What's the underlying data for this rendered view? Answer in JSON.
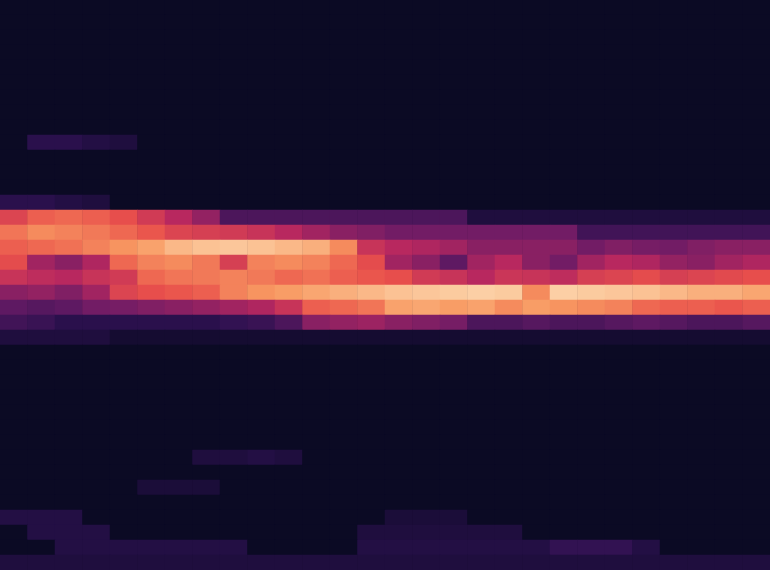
{
  "chart_data": {
    "type": "heatmap",
    "tick_labels": false,
    "grid": false,
    "zlim": [
      0,
      100
    ],
    "z": [
      [
        0,
        0,
        0,
        0,
        0,
        0,
        0,
        0,
        0,
        0,
        0,
        0,
        0,
        0,
        0,
        0,
        0,
        0,
        0,
        0,
        0,
        0,
        0,
        0,
        0,
        0,
        0,
        0
      ],
      [
        0,
        0,
        0,
        0,
        0,
        0,
        0,
        0,
        0,
        0,
        0,
        0,
        0,
        0,
        0,
        0,
        0,
        0,
        0,
        0,
        0,
        0,
        0,
        0,
        0,
        0,
        0,
        0
      ],
      [
        0,
        0,
        0,
        0,
        0,
        0,
        0,
        0,
        0,
        0,
        0,
        0,
        0,
        0,
        0,
        0,
        0,
        0,
        0,
        0,
        0,
        0,
        0,
        0,
        0,
        0,
        0,
        0
      ],
      [
        0,
        0,
        0,
        0,
        0,
        0,
        0,
        0,
        0,
        0,
        0,
        0,
        0,
        0,
        0,
        0,
        0,
        0,
        0,
        0,
        0,
        0,
        0,
        0,
        0,
        0,
        0,
        0
      ],
      [
        0,
        0,
        0,
        0,
        0,
        0,
        0,
        0,
        0,
        0,
        0,
        0,
        0,
        0,
        0,
        0,
        0,
        0,
        0,
        0,
        0,
        0,
        0,
        0,
        0,
        0,
        0,
        0
      ],
      [
        0,
        0,
        0,
        0,
        0,
        0,
        0,
        0,
        0,
        0,
        0,
        0,
        0,
        0,
        0,
        0,
        0,
        0,
        0,
        0,
        0,
        0,
        0,
        0,
        0,
        0,
        0,
        0
      ],
      [
        0,
        0,
        0,
        0,
        0,
        0,
        0,
        0,
        0,
        0,
        0,
        0,
        0,
        0,
        0,
        0,
        0,
        0,
        0,
        0,
        0,
        0,
        0,
        0,
        0,
        0,
        0,
        0
      ],
      [
        0,
        0,
        0,
        0,
        0,
        0,
        0,
        0,
        0,
        0,
        0,
        0,
        0,
        0,
        0,
        0,
        0,
        0,
        0,
        0,
        0,
        0,
        0,
        0,
        0,
        0,
        0,
        0
      ],
      [
        0,
        0,
        0,
        0,
        0,
        0,
        0,
        0,
        0,
        0,
        0,
        0,
        0,
        0,
        0,
        0,
        0,
        0,
        0,
        0,
        0,
        0,
        0,
        0,
        0,
        0,
        0,
        0
      ],
      [
        0,
        15,
        15,
        12,
        10,
        0,
        0,
        0,
        0,
        0,
        0,
        0,
        0,
        0,
        0,
        0,
        0,
        0,
        0,
        0,
        0,
        0,
        0,
        0,
        0,
        0,
        0,
        0
      ],
      [
        0,
        0,
        0,
        0,
        0,
        0,
        0,
        0,
        0,
        0,
        0,
        0,
        0,
        0,
        0,
        0,
        0,
        0,
        0,
        0,
        0,
        0,
        0,
        0,
        0,
        0,
        0,
        0
      ],
      [
        0,
        0,
        0,
        0,
        0,
        0,
        0,
        0,
        0,
        0,
        0,
        0,
        0,
        0,
        0,
        0,
        0,
        0,
        0,
        0,
        0,
        0,
        0,
        0,
        0,
        0,
        0,
        0
      ],
      [
        0,
        0,
        0,
        0,
        0,
        0,
        0,
        0,
        0,
        0,
        0,
        0,
        0,
        0,
        0,
        0,
        0,
        0,
        0,
        0,
        0,
        0,
        0,
        0,
        0,
        0,
        0,
        0
      ],
      [
        15,
        15,
        12,
        10,
        0,
        0,
        0,
        0,
        0,
        0,
        0,
        0,
        0,
        0,
        0,
        0,
        0,
        0,
        0,
        0,
        0,
        0,
        0,
        0,
        0,
        0,
        0,
        0
      ],
      [
        62,
        70,
        72,
        70,
        66,
        58,
        50,
        42,
        25,
        25,
        25,
        25,
        25,
        25,
        25,
        25,
        25,
        10,
        10,
        10,
        10,
        10,
        10,
        10,
        10,
        10,
        10,
        10
      ],
      [
        75,
        80,
        78,
        76,
        72,
        68,
        62,
        60,
        58,
        55,
        50,
        45,
        40,
        38,
        35,
        35,
        35,
        35,
        35,
        35,
        35,
        22,
        22,
        22,
        22,
        22,
        22,
        22
      ],
      [
        70,
        72,
        74,
        78,
        82,
        85,
        90,
        92,
        93,
        92,
        90,
        88,
        80,
        55,
        50,
        48,
        45,
        40,
        40,
        40,
        40,
        35,
        38,
        36,
        35,
        38,
        40,
        40
      ],
      [
        65,
        45,
        40,
        48,
        72,
        78,
        80,
        76,
        60,
        78,
        80,
        78,
        72,
        65,
        45,
        40,
        30,
        45,
        50,
        40,
        35,
        45,
        50,
        48,
        42,
        40,
        45,
        48
      ],
      [
        55,
        52,
        50,
        55,
        58,
        72,
        75,
        76,
        78,
        76,
        72,
        74,
        70,
        68,
        66,
        58,
        55,
        50,
        56,
        55,
        52,
        60,
        62,
        65,
        60,
        62,
        64,
        66
      ],
      [
        40,
        42,
        38,
        45,
        62,
        66,
        68,
        70,
        78,
        82,
        84,
        86,
        88,
        90,
        92,
        93,
        94,
        95,
        94,
        80,
        95,
        94,
        93,
        92,
        90,
        88,
        88,
        86
      ],
      [
        30,
        28,
        30,
        35,
        36,
        38,
        40,
        42,
        45,
        48,
        55,
        70,
        72,
        75,
        85,
        86,
        84,
        85,
        80,
        84,
        82,
        80,
        78,
        72,
        70,
        70,
        68,
        70
      ],
      [
        22,
        20,
        15,
        15,
        15,
        15,
        15,
        15,
        18,
        20,
        25,
        40,
        42,
        44,
        40,
        38,
        36,
        25,
        25,
        28,
        25,
        25,
        28,
        30,
        28,
        25,
        25,
        28
      ],
      [
        10,
        10,
        10,
        10,
        5,
        5,
        5,
        5,
        5,
        5,
        5,
        5,
        5,
        5,
        5,
        5,
        5,
        5,
        5,
        5,
        5,
        5,
        5,
        5,
        5,
        5,
        5,
        5
      ],
      [
        0,
        0,
        0,
        0,
        0,
        0,
        0,
        0,
        0,
        0,
        0,
        0,
        0,
        0,
        0,
        0,
        0,
        0,
        0,
        0,
        0,
        0,
        0,
        0,
        0,
        0,
        0,
        0
      ],
      [
        0,
        0,
        0,
        0,
        0,
        0,
        0,
        0,
        0,
        0,
        0,
        0,
        0,
        0,
        0,
        0,
        0,
        0,
        0,
        0,
        0,
        0,
        0,
        0,
        0,
        0,
        0,
        0
      ],
      [
        0,
        0,
        0,
        0,
        0,
        0,
        0,
        0,
        0,
        0,
        0,
        0,
        0,
        0,
        0,
        0,
        0,
        0,
        0,
        0,
        0,
        0,
        0,
        0,
        0,
        0,
        0,
        0
      ],
      [
        0,
        0,
        0,
        0,
        0,
        0,
        0,
        0,
        0,
        0,
        0,
        0,
        0,
        0,
        0,
        0,
        0,
        0,
        0,
        0,
        0,
        0,
        0,
        0,
        0,
        0,
        0,
        0
      ],
      [
        0,
        0,
        0,
        0,
        0,
        0,
        0,
        0,
        0,
        0,
        0,
        0,
        0,
        0,
        0,
        0,
        0,
        0,
        0,
        0,
        0,
        0,
        0,
        0,
        0,
        0,
        0,
        0
      ],
      [
        0,
        0,
        0,
        0,
        0,
        0,
        0,
        0,
        0,
        0,
        0,
        0,
        0,
        0,
        0,
        0,
        0,
        0,
        0,
        0,
        0,
        0,
        0,
        0,
        0,
        0,
        0,
        0
      ],
      [
        0,
        0,
        0,
        0,
        0,
        0,
        0,
        0,
        0,
        0,
        0,
        0,
        0,
        0,
        0,
        0,
        0,
        0,
        0,
        0,
        0,
        0,
        0,
        0,
        0,
        0,
        0,
        0
      ],
      [
        0,
        0,
        0,
        0,
        0,
        0,
        0,
        10,
        10,
        12,
        10,
        0,
        0,
        0,
        0,
        0,
        0,
        0,
        0,
        0,
        0,
        0,
        0,
        0,
        0,
        0,
        0,
        0
      ],
      [
        0,
        0,
        0,
        0,
        0,
        0,
        0,
        0,
        0,
        0,
        0,
        0,
        0,
        0,
        0,
        0,
        0,
        0,
        0,
        0,
        0,
        0,
        0,
        0,
        0,
        0,
        0,
        0
      ],
      [
        0,
        0,
        0,
        0,
        0,
        8,
        8,
        8,
        0,
        0,
        0,
        0,
        0,
        0,
        0,
        0,
        0,
        0,
        0,
        0,
        0,
        0,
        0,
        0,
        0,
        0,
        0,
        0
      ],
      [
        0,
        0,
        0,
        0,
        0,
        0,
        0,
        0,
        0,
        0,
        0,
        0,
        0,
        0,
        0,
        0,
        0,
        0,
        0,
        0,
        0,
        0,
        0,
        0,
        0,
        0,
        0,
        0
      ],
      [
        12,
        12,
        12,
        0,
        0,
        0,
        0,
        0,
        0,
        0,
        0,
        0,
        0,
        0,
        8,
        8,
        8,
        0,
        0,
        0,
        0,
        0,
        0,
        0,
        0,
        0,
        0,
        0
      ],
      [
        0,
        12,
        12,
        12,
        0,
        0,
        0,
        0,
        0,
        0,
        0,
        0,
        0,
        10,
        10,
        10,
        10,
        10,
        10,
        0,
        0,
        0,
        0,
        0,
        0,
        0,
        0,
        0
      ],
      [
        0,
        0,
        12,
        12,
        12,
        12,
        12,
        12,
        12,
        0,
        0,
        0,
        0,
        12,
        12,
        12,
        12,
        12,
        12,
        12,
        18,
        18,
        18,
        12,
        0,
        0,
        0,
        0
      ],
      [
        10,
        10,
        10,
        10,
        10,
        10,
        10,
        10,
        10,
        10,
        10,
        10,
        10,
        10,
        10,
        10,
        10,
        10,
        10,
        10,
        10,
        10,
        10,
        10,
        10,
        10,
        10,
        10
      ]
    ]
  }
}
